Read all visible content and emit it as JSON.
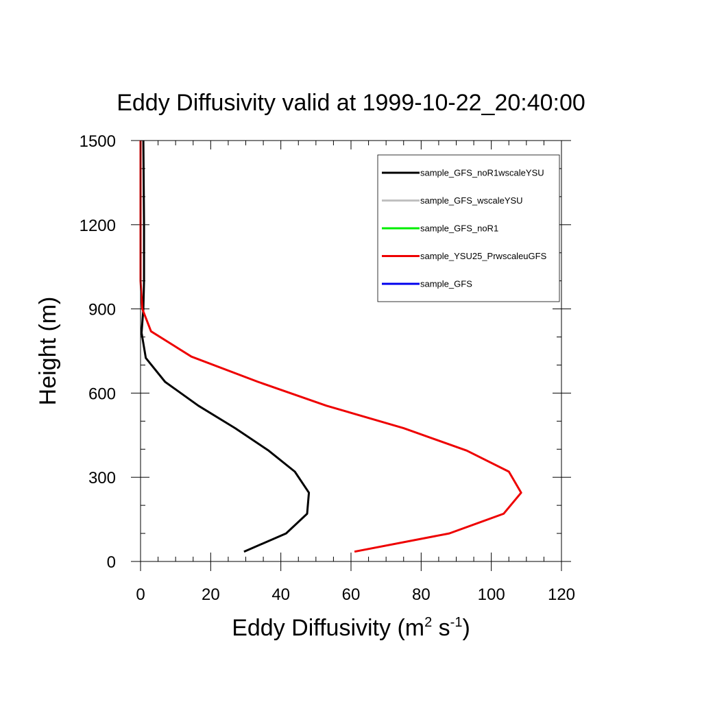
{
  "chart_data": {
    "type": "line",
    "title": "Eddy Diffusivity valid at 1999-10-22_20:40:00",
    "xlabel": "Eddy Diffusivity (m² s⁻¹)",
    "xlabel_parts": {
      "base": "Eddy Diffusivity (m",
      "sup1": "2",
      "mid": " s",
      "sup2": "-1",
      "end": ")"
    },
    "ylabel": "Height (m)",
    "xlim": [
      0,
      120
    ],
    "ylim": [
      0,
      1500
    ],
    "xticks": [
      0,
      20,
      40,
      60,
      80,
      100,
      120
    ],
    "yticks": [
      0,
      300,
      600,
      900,
      1200,
      1500
    ],
    "x_minor_step": 5,
    "y_minor_step": 100,
    "grid": false,
    "legend_position": "top-right",
    "series": [
      {
        "name": "sample_GFS_noR1wscaleYSU",
        "color": "#000000",
        "points": [
          [
            29.5,
            35
          ],
          [
            41.5,
            100
          ],
          [
            47.5,
            170
          ],
          [
            48,
            245
          ],
          [
            44,
            320
          ],
          [
            36.5,
            395
          ],
          [
            27,
            475
          ],
          [
            16.5,
            555
          ],
          [
            7,
            640
          ],
          [
            1.5,
            725
          ],
          [
            0.3,
            815
          ],
          [
            0.8,
            900
          ],
          [
            1,
            1000
          ],
          [
            1,
            1200
          ],
          [
            0.8,
            1500
          ]
        ]
      },
      {
        "name": "sample_GFS_wscaleYSU",
        "color": "#c0c0c0",
        "points": []
      },
      {
        "name": "sample_GFS_noR1",
        "color": "#00ee00",
        "points": []
      },
      {
        "name": "sample_YSU25_PrwscaleuGFS",
        "color": "#ee0000",
        "points": [
          [
            61,
            35
          ],
          [
            88,
            100
          ],
          [
            103.5,
            170
          ],
          [
            108.5,
            245
          ],
          [
            105,
            320
          ],
          [
            93,
            395
          ],
          [
            75,
            475
          ],
          [
            53,
            555
          ],
          [
            33.5,
            640
          ],
          [
            14.5,
            730
          ],
          [
            3,
            820
          ],
          [
            0.5,
            900
          ],
          [
            0,
            1000
          ],
          [
            0,
            1200
          ],
          [
            0,
            1500
          ]
        ]
      },
      {
        "name": "sample_GFS",
        "color": "#0000ee",
        "points": []
      }
    ]
  }
}
